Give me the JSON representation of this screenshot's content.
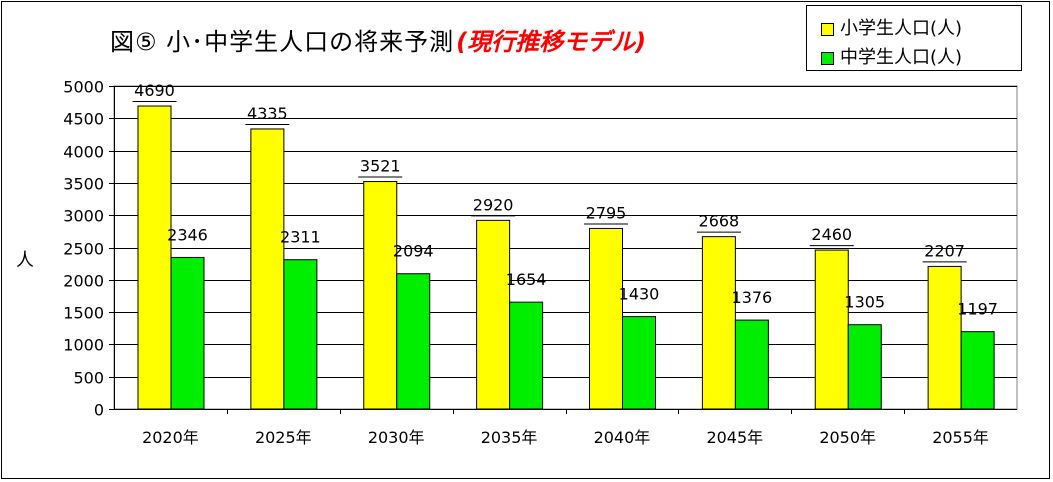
{
  "title": {
    "main": "図⑤ 小･中学生人口の将来予測",
    "sub": "(現行推移モデル)"
  },
  "legend": {
    "items": [
      {
        "label": "小学生人口(人)",
        "color": "#ffff00"
      },
      {
        "label": "中学生人口(人)",
        "color": "#00ee00"
      }
    ]
  },
  "chart_data": {
    "type": "bar",
    "title": "図⑤ 小･中学生人口の将来予測(現行推移モデル)",
    "ylabel": "人",
    "xlabel": "",
    "ylim": [
      0,
      5000
    ],
    "yticks": [
      0,
      500,
      1000,
      1500,
      2000,
      2500,
      3000,
      3500,
      4000,
      4500,
      5000
    ],
    "grid": true,
    "legend_position": "top-right",
    "categories": [
      "2020年",
      "2025年",
      "2030年",
      "2035年",
      "2040年",
      "2045年",
      "2050年",
      "2055年"
    ],
    "series": [
      {
        "name": "小学生人口(人)",
        "color": "#ffff00",
        "values": [
          4690,
          4335,
          3521,
          2920,
          2795,
          2668,
          2460,
          2207
        ]
      },
      {
        "name": "中学生人口(人)",
        "color": "#00ee00",
        "values": [
          2346,
          2311,
          2094,
          1654,
          1430,
          1376,
          1305,
          1197
        ]
      }
    ]
  }
}
